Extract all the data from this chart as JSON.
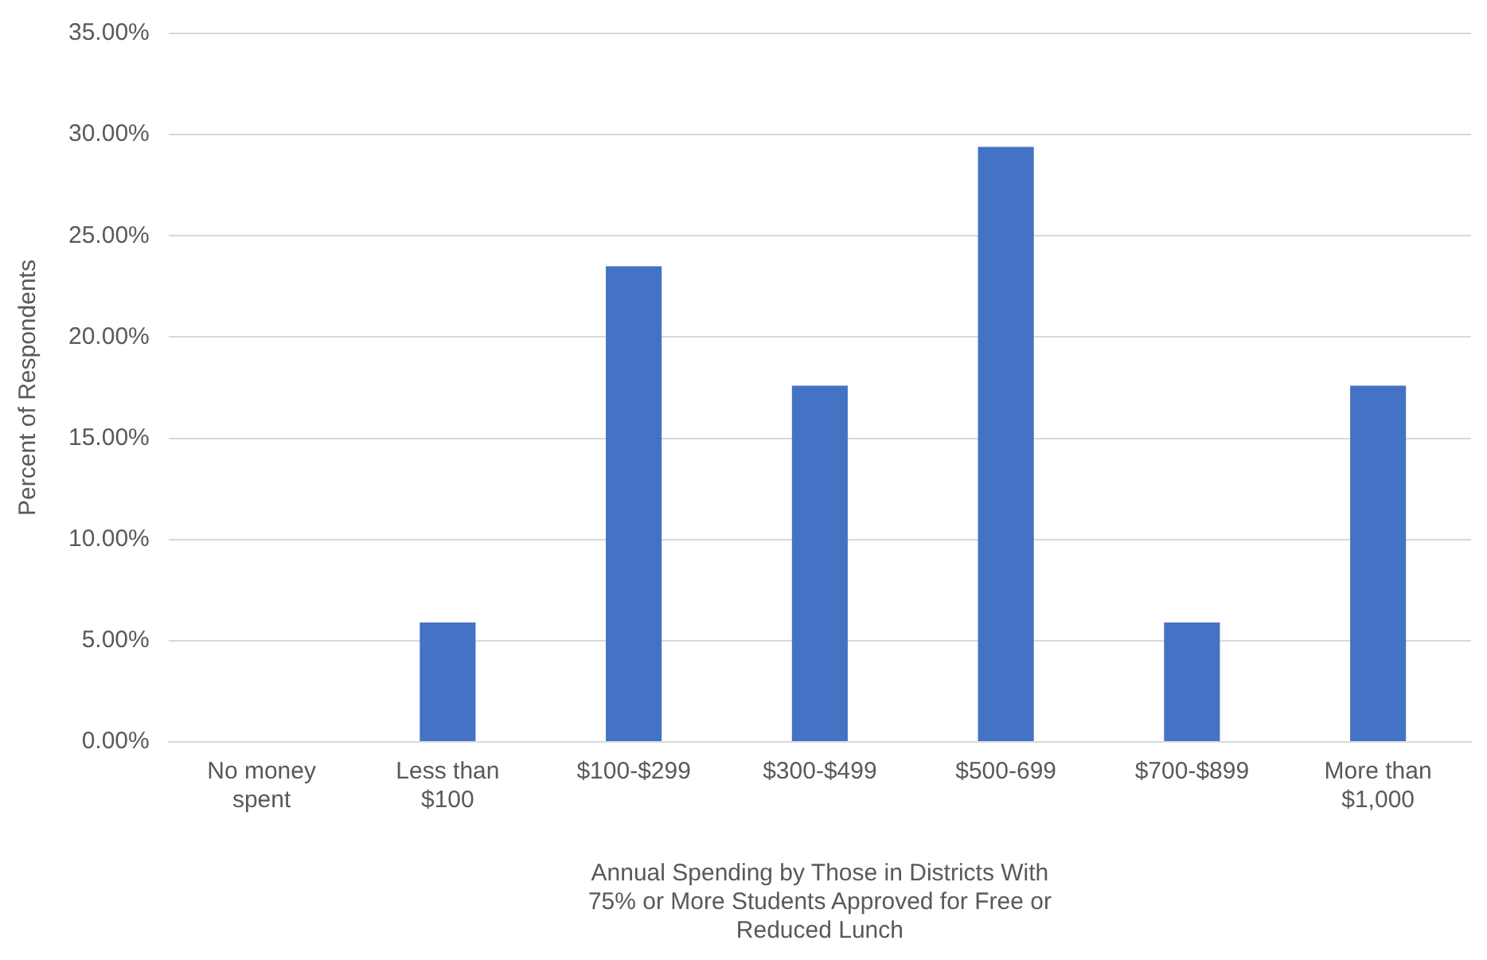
{
  "chart_data": {
    "type": "bar",
    "xlabel": "Annual Spending by Those in Districts With 75% or More Students Approved for Free or Reduced Lunch",
    "ylabel": "Percent of Respondents",
    "categories": [
      "No money spent",
      "Less than $100",
      "$100-$299",
      "$300-$499",
      "$500-699",
      "$700-$899",
      "More than $1,000"
    ],
    "values": [
      0,
      5.9,
      23.5,
      17.6,
      29.4,
      5.9,
      17.6
    ],
    "color": "#4472c4",
    "ylim": [
      0,
      35
    ],
    "yticks": [
      {
        "value": 0,
        "label": "0.00%"
      },
      {
        "value": 5,
        "label": "5.00%"
      },
      {
        "value": 10,
        "label": "10.00%"
      },
      {
        "value": 15,
        "label": "15.00%"
      },
      {
        "value": 20,
        "label": "20.00%"
      },
      {
        "value": 25,
        "label": "25.00%"
      },
      {
        "value": 30,
        "label": "30.00%"
      },
      {
        "value": 35,
        "label": "35.00%"
      }
    ],
    "grid": "y",
    "legend": false
  }
}
